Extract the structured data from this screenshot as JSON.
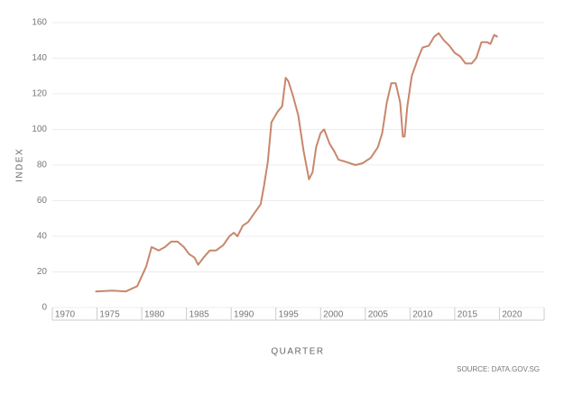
{
  "chart_data": {
    "type": "line",
    "y_label": "INDEX",
    "x_label": "QUARTER",
    "source": "SOURCE: DATA.GOV.SG",
    "color": "#c8876c",
    "grid": true,
    "xlim": [
      1970,
      2025
    ],
    "xticks": [
      1970,
      1975,
      1980,
      1985,
      1990,
      1995,
      2000,
      2005,
      2010,
      2015,
      2020
    ],
    "ylim": [
      0,
      160
    ],
    "yticks": [
      0,
      20,
      40,
      60,
      80,
      100,
      120,
      140,
      160
    ],
    "x": [
      1974.8,
      1976.7,
      1978.2,
      1979.5,
      1980.5,
      1981.1,
      1981.9,
      1982.6,
      1983.3,
      1984,
      1984.7,
      1985.3,
      1985.9,
      1986.3,
      1986.9,
      1987.6,
      1988.3,
      1989.1,
      1989.8,
      1990.3,
      1990.7,
      1991.3,
      1991.9,
      1992.6,
      1993.3,
      1993.7,
      1994.1,
      1994.5,
      1995.2,
      1995.7,
      1996.1,
      1996.4,
      1996.9,
      1997.5,
      1998.1,
      1998.7,
      1999.1,
      1999.5,
      2000,
      2000.4,
      2001,
      2001.5,
      2002,
      2002.7,
      2003.9,
      2004.7,
      2005.6,
      2006.4,
      2006.9,
      2007.4,
      2007.9,
      2008.4,
      2008.9,
      2009.2,
      2009.4,
      2009.7,
      2010.2,
      2010.9,
      2011.4,
      2012.1,
      2012.7,
      2013.2,
      2013.8,
      2014.4,
      2015,
      2015.6,
      2016.2,
      2016.9,
      2017.4,
      2018,
      2018.6,
      2019,
      2019.4,
      2019.8
    ],
    "series": [
      {
        "name": "Index",
        "color": "#c8876c",
        "values": [
          9,
          9.5,
          9,
          12,
          23,
          34,
          32,
          34,
          37,
          37,
          34,
          30,
          28,
          24,
          28,
          32,
          32,
          35,
          40,
          42,
          40,
          46,
          48,
          53,
          58,
          69,
          82,
          104,
          110,
          113,
          129,
          127,
          119,
          108,
          88,
          72,
          76,
          90,
          98,
          100,
          92,
          88,
          83,
          82,
          80,
          81,
          84,
          90,
          98,
          115,
          126,
          126,
          115,
          96,
          96,
          113,
          130,
          140,
          146,
          147,
          152,
          154,
          150,
          147,
          143,
          141,
          137,
          137,
          140,
          149,
          149,
          148,
          153,
          152
        ]
      }
    ]
  }
}
